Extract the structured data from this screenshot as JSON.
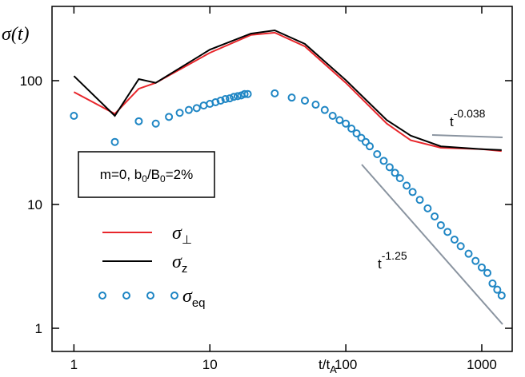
{
  "chart_data": {
    "type": "line",
    "y_label": "σ(t)",
    "x_label_parts": [
      "t/t",
      "A"
    ],
    "log_x": true,
    "log_y": true,
    "xlim": [
      0.69,
      1674
    ],
    "ylim": [
      0.65,
      398
    ],
    "xticks": [
      1,
      10,
      100,
      1000
    ],
    "yticks": [
      1,
      10,
      100
    ],
    "legend": "lower left",
    "box_parts": [
      "m=0, b",
      "0",
      "/B",
      "0",
      "=2%"
    ],
    "annotations": [
      {
        "base": "t",
        "exponent": "-0.038"
      },
      {
        "base": "t",
        "exponent": "-1.25"
      }
    ],
    "series": [
      {
        "name": "σ⊥",
        "color": "#e8262b",
        "style": "line",
        "x": [
          1,
          2,
          3,
          4,
          10,
          20,
          30,
          50,
          100,
          200,
          300,
          500,
          1000,
          1400
        ],
        "values": [
          81,
          54,
          86,
          96,
          168,
          234,
          244,
          189,
          96,
          45,
          33,
          28.7,
          28,
          27
        ]
      },
      {
        "name": "σz",
        "color": "#000000",
        "style": "line",
        "x": [
          1,
          2,
          3,
          4,
          10,
          20,
          30,
          50,
          100,
          200,
          300,
          500,
          1000,
          1400
        ],
        "values": [
          109,
          52,
          103,
          96,
          178,
          240,
          255,
          198,
          101,
          48,
          36,
          29.5,
          28,
          27.5
        ]
      },
      {
        "name": "σeq",
        "color": "#1f86c4",
        "style": "markers",
        "x": [
          1,
          2,
          3,
          4,
          5,
          6,
          7,
          8,
          9,
          10,
          11,
          12,
          13,
          14,
          15,
          16,
          17,
          18,
          19,
          30,
          40,
          50,
          60,
          70,
          80,
          90,
          100,
          110,
          120,
          130,
          140,
          150,
          170,
          190,
          210,
          230,
          250,
          280,
          310,
          350,
          400,
          450,
          500,
          560,
          630,
          700,
          800,
          900,
          1000,
          1100,
          1200,
          1300,
          1400
        ],
        "values": [
          52,
          32,
          47,
          45,
          51,
          55,
          58,
          60,
          63,
          65,
          67,
          69,
          71,
          72,
          74,
          75,
          76,
          78,
          78,
          79,
          73,
          69,
          64,
          58,
          52,
          48,
          45,
          41,
          37.5,
          34.5,
          32,
          29.5,
          25.5,
          22.5,
          20,
          18,
          16.3,
          14.2,
          12.6,
          10.9,
          9.3,
          8,
          6.8,
          6,
          5.2,
          4.6,
          4,
          3.5,
          3.1,
          2.8,
          2.3,
          2.05,
          1.84
        ]
      }
    ]
  }
}
